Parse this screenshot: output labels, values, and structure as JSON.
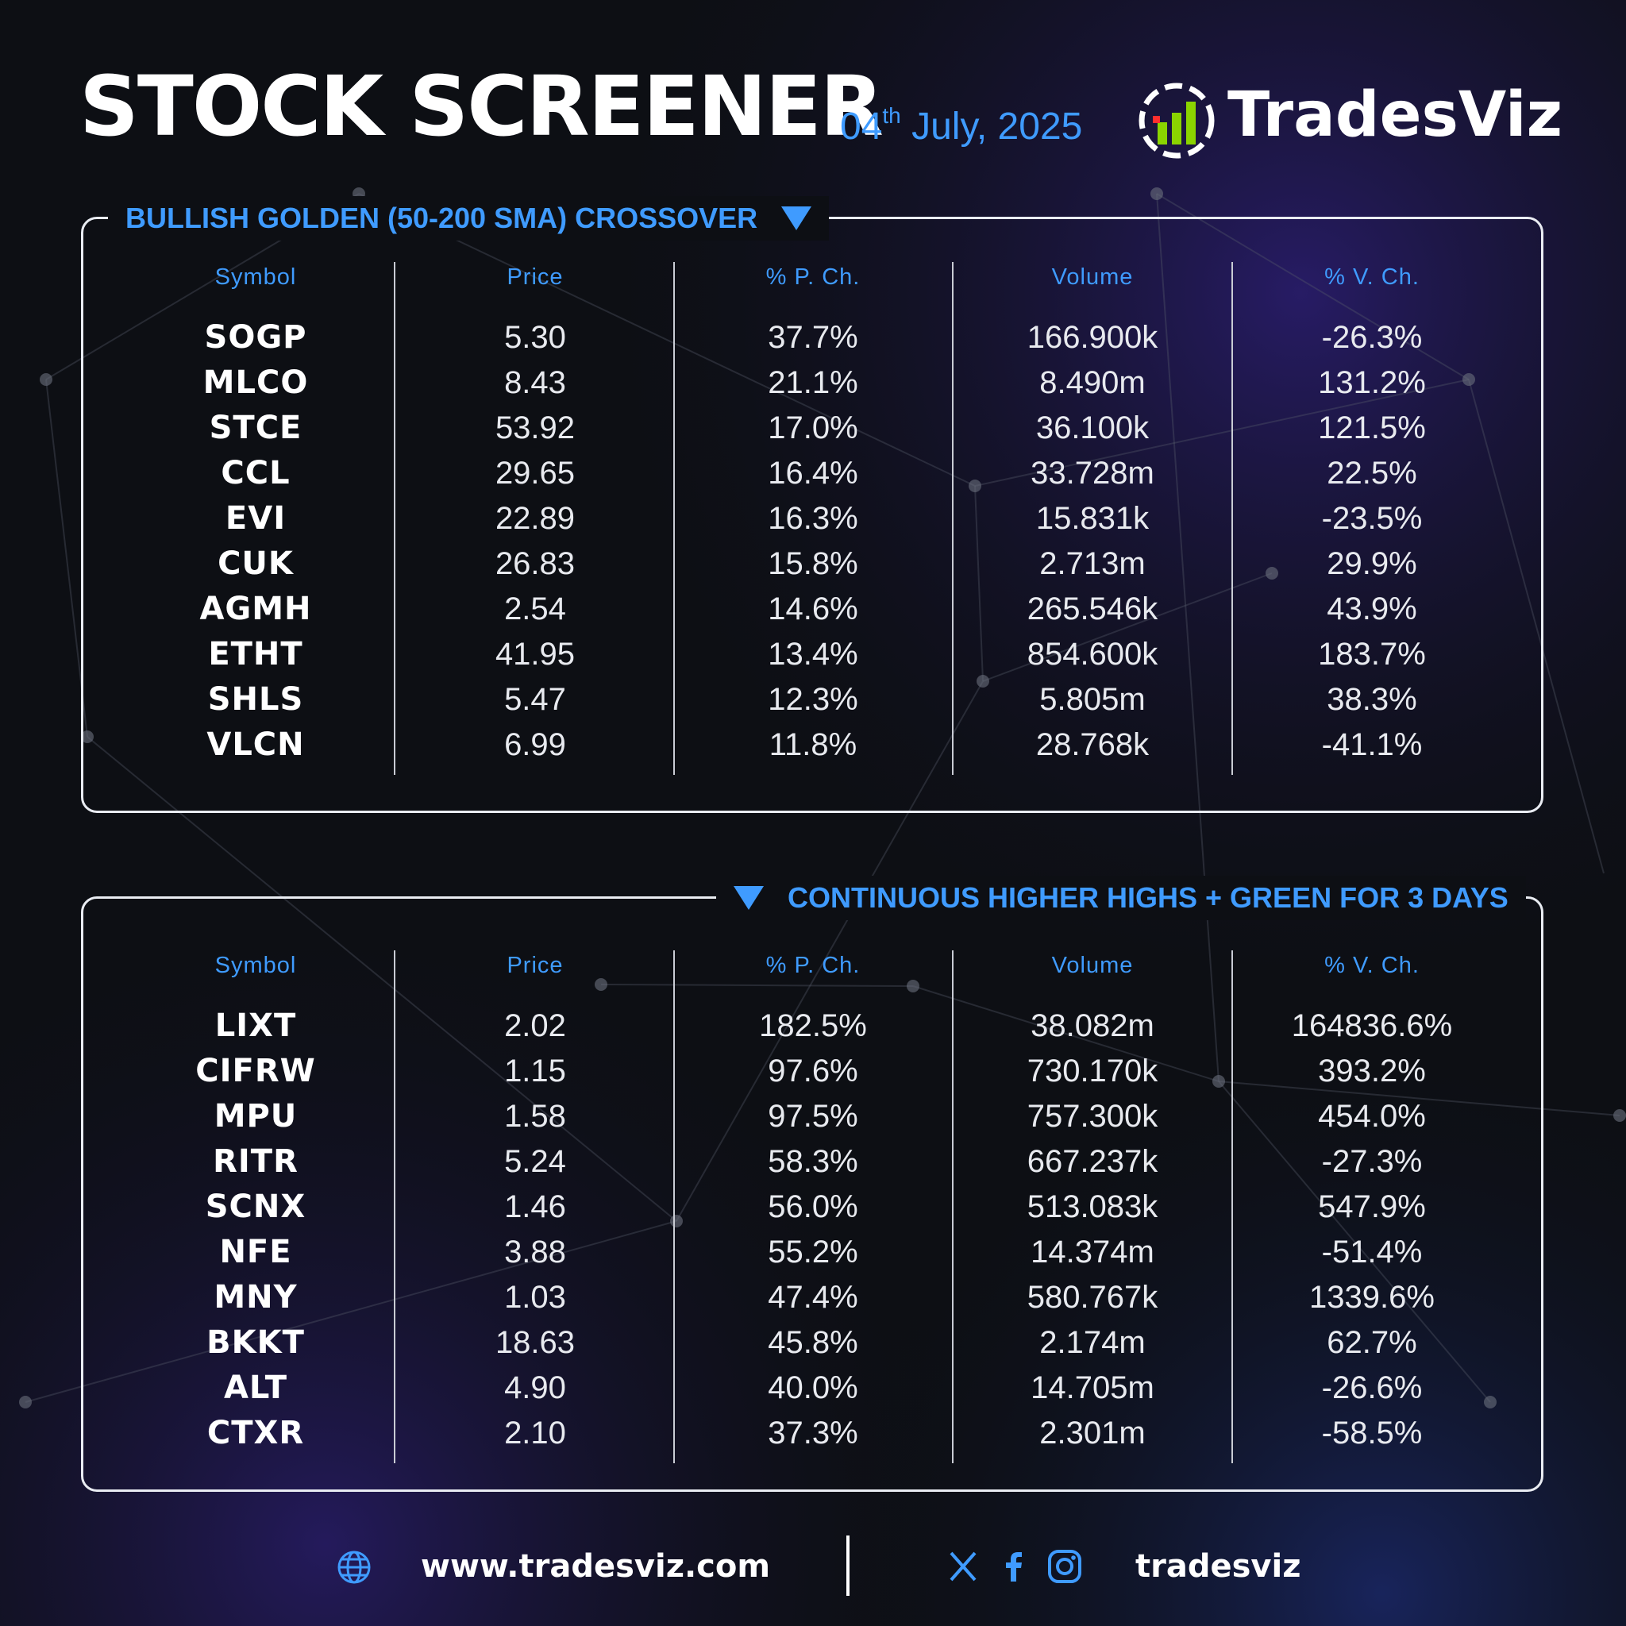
{
  "header": {
    "title": "STOCK SCREENER",
    "date_day": "04",
    "date_suffix": "th",
    "date_rest": " July, 2025",
    "brand": "TradesViz"
  },
  "colors": {
    "accent": "#3f9bff",
    "background": "#0d0f14",
    "text": "#ffffff",
    "logo_green": "#8bd400",
    "logo_red": "#ff2e2e"
  },
  "columns": [
    "Symbol",
    "Price",
    "% P. Ch.",
    "Volume",
    "% V. Ch."
  ],
  "screens": [
    {
      "title": "BULLISH GOLDEN (50-200 SMA) CROSSOVER",
      "rows": [
        [
          "SOGP",
          "5.30",
          "37.7%",
          "166.900k",
          "-26.3%"
        ],
        [
          "MLCO",
          "8.43",
          "21.1%",
          "8.490m",
          "131.2%"
        ],
        [
          "STCE",
          "53.92",
          "17.0%",
          "36.100k",
          "121.5%"
        ],
        [
          "CCL",
          "29.65",
          "16.4%",
          "33.728m",
          "22.5%"
        ],
        [
          "EVI",
          "22.89",
          "16.3%",
          "15.831k",
          "-23.5%"
        ],
        [
          "CUK",
          "26.83",
          "15.8%",
          "2.713m",
          "29.9%"
        ],
        [
          "AGMH",
          "2.54",
          "14.6%",
          "265.546k",
          "43.9%"
        ],
        [
          "ETHT",
          "41.95",
          "13.4%",
          "854.600k",
          "183.7%"
        ],
        [
          "SHLS",
          "5.47",
          "12.3%",
          "5.805m",
          "38.3%"
        ],
        [
          "VLCN",
          "6.99",
          "11.8%",
          "28.768k",
          "-41.1%"
        ]
      ]
    },
    {
      "title": "CONTINUOUS HIGHER HIGHS + GREEN FOR 3 DAYS",
      "rows": [
        [
          "LIXT",
          "2.02",
          "182.5%",
          "38.082m",
          "164836.6%"
        ],
        [
          "CIFRW",
          "1.15",
          "97.6%",
          "730.170k",
          "393.2%"
        ],
        [
          "MPU",
          "1.58",
          "97.5%",
          "757.300k",
          "454.0%"
        ],
        [
          "RITR",
          "5.24",
          "58.3%",
          "667.237k",
          "-27.3%"
        ],
        [
          "SCNX",
          "1.46",
          "56.0%",
          "513.083k",
          "547.9%"
        ],
        [
          "NFE",
          "3.88",
          "55.2%",
          "14.374m",
          "-51.4%"
        ],
        [
          "MNY",
          "1.03",
          "47.4%",
          "580.767k",
          "1339.6%"
        ],
        [
          "BKKT",
          "18.63",
          "45.8%",
          "2.174m",
          "62.7%"
        ],
        [
          "ALT",
          "4.90",
          "40.0%",
          "14.705m",
          "-26.6%"
        ],
        [
          "CTXR",
          "2.10",
          "37.3%",
          "2.301m",
          "-58.5%"
        ]
      ]
    }
  ],
  "footer": {
    "website": "www.tradesviz.com",
    "handle": "tradesviz",
    "globe_icon": "globe-icon",
    "social_icons": [
      "x-icon",
      "facebook-icon",
      "instagram-icon"
    ]
  }
}
